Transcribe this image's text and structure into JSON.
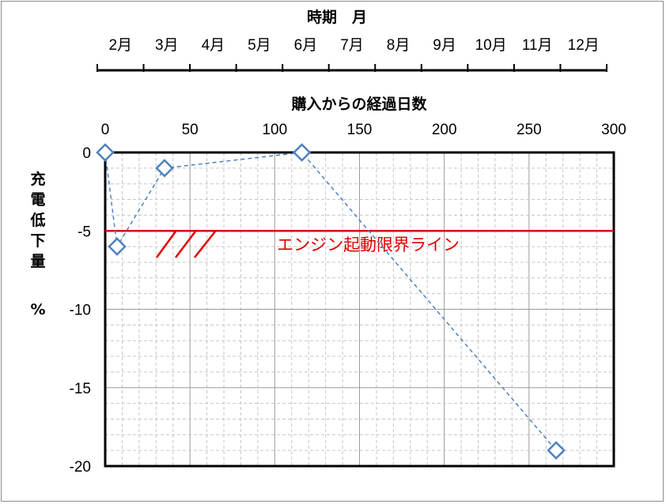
{
  "chart_data": {
    "type": "scatter",
    "title": "",
    "top_axis": {
      "title": "時期　月",
      "labels": [
        "2月",
        "3月",
        "4月",
        "5月",
        "6月",
        "7月",
        "8月",
        "9月",
        "10月",
        "11月",
        "12月"
      ]
    },
    "x_axis": {
      "title": "購入からの経過日数",
      "ticks": [
        0,
        50,
        100,
        150,
        200,
        250,
        300
      ],
      "range": [
        0,
        300
      ],
      "position": "top"
    },
    "y_axis": {
      "title_chars": [
        "充",
        "電",
        "低",
        "下",
        "量"
      ],
      "unit": "%",
      "ticks": [
        0,
        -5,
        -10,
        -15,
        -20
      ],
      "range": [
        -20,
        0
      ]
    },
    "grid": true,
    "series": [
      {
        "marker": "diamond-open",
        "line": "dashed",
        "color": "#4f81bd",
        "points": [
          {
            "x": 0,
            "y": 0
          },
          {
            "x": 7,
            "y": -6
          },
          {
            "x": 35,
            "y": -1
          },
          {
            "x": 116,
            "y": 0
          },
          {
            "x": 266,
            "y": -19
          }
        ]
      }
    ],
    "threshold": {
      "y": -5,
      "label": "エンジン起動限界ライン",
      "color": "#e00000"
    }
  }
}
